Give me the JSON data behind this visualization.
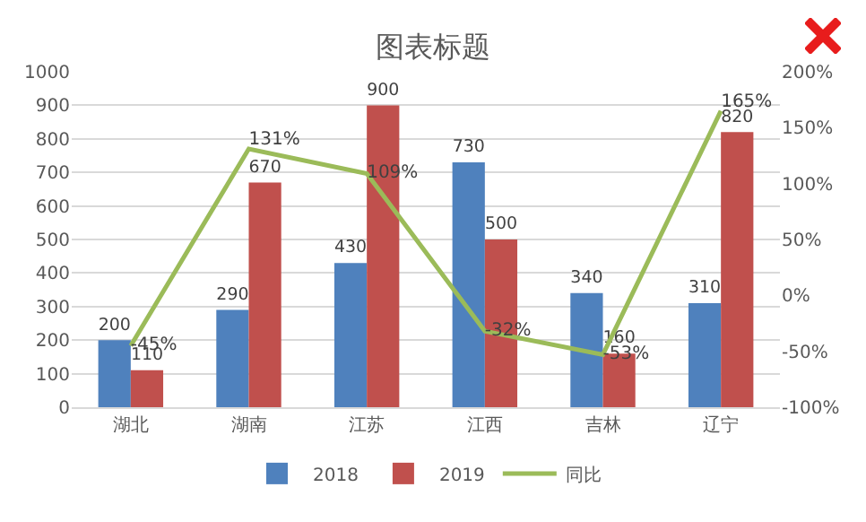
{
  "chart_data": {
    "type": "bar",
    "title": "图表标题",
    "categories": [
      "湖北",
      "湖南",
      "江苏",
      "江西",
      "吉林",
      "辽宁"
    ],
    "series": [
      {
        "name": "2018",
        "color": "#4f81bd",
        "values": [
          200,
          290,
          430,
          730,
          340,
          310
        ]
      },
      {
        "name": "2019",
        "color": "#c0504d",
        "values": [
          110,
          670,
          900,
          500,
          160,
          820
        ]
      },
      {
        "name": "同比",
        "type": "line",
        "axis": "y2",
        "color": "#9bbb59",
        "values": [
          -45,
          131,
          109,
          -32,
          -53,
          165
        ],
        "value_labels": [
          "-45%",
          "131%",
          "109%",
          "-32%",
          "-53%",
          "165%"
        ]
      }
    ],
    "data_labels": true,
    "ylim": [
      0,
      1000
    ],
    "yticks": [
      0,
      100,
      200,
      300,
      400,
      500,
      600,
      700,
      800,
      900,
      1000
    ],
    "y2lim": [
      -100,
      200
    ],
    "y2ticks": [
      {
        "value": -100,
        "label": "-100%"
      },
      {
        "value": -50,
        "label": "-50%"
      },
      {
        "value": 0,
        "label": "0%"
      },
      {
        "value": 50,
        "label": "50%"
      },
      {
        "value": 100,
        "label": "100%"
      },
      {
        "value": 150,
        "label": "150%"
      },
      {
        "value": 200,
        "label": "200%"
      }
    ],
    "grid": "y",
    "legend": "bottom",
    "marker": "none",
    "line_style": "solid"
  }
}
